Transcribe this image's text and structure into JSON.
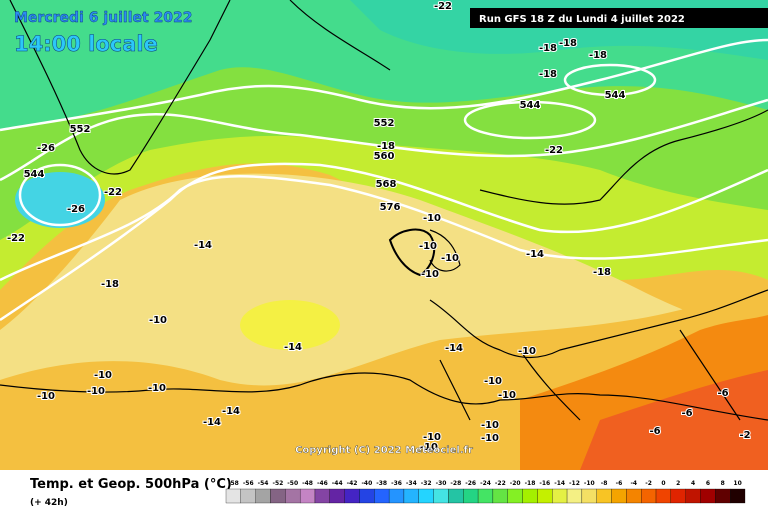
{
  "header": {
    "date": "Mercredi 6 juillet 2022",
    "time": "14:00 locale",
    "run": "Run GFS 18 Z du Lundi 4 juillet 2022"
  },
  "map_labels": [
    "-22",
    "-18",
    "-18",
    "-18",
    "-18",
    "552",
    "544",
    "544",
    "-26",
    "552",
    "-18",
    "560",
    "-22",
    "544",
    "-22",
    "-26",
    "568",
    "576",
    "-10",
    "-22",
    "-14",
    "-10",
    "-10",
    "-10",
    "-14",
    "-18",
    "-18",
    "-10",
    "-14",
    "-14",
    "-10",
    "-10",
    "-10",
    "-10",
    "-10",
    "-10",
    "-10",
    "-6",
    "-14",
    "-6",
    "-14",
    "-10",
    "-6",
    "-10",
    "-10",
    "-2",
    "-10"
  ],
  "copyright": "Copyright (C) 2022 Meteociel.fr",
  "footer": {
    "title": "Temp. et Geop. 500hPa (°C)",
    "lead": "(+ 42h)"
  },
  "color_scale": {
    "labels": [
      "-58",
      "-56",
      "-54",
      "-52",
      "-50",
      "-48",
      "-46",
      "-44",
      "-42",
      "-40",
      "-38",
      "-36",
      "-34",
      "-32",
      "-30",
      "-28",
      "-26",
      "-24",
      "-22",
      "-20",
      "-18",
      "-16",
      "-14",
      "-12",
      "-10",
      "-8",
      "-6",
      "-4",
      "-2",
      "0",
      "2",
      "4",
      "6",
      "8",
      "10"
    ],
    "colors": [
      "#e4e4e4",
      "#c4c4c4",
      "#a4a4a4",
      "#846484",
      "#a474a4",
      "#c484c4",
      "#8444a4",
      "#6424a4",
      "#4424c4",
      "#2444e4",
      "#2464ff",
      "#2494ff",
      "#24b4ff",
      "#24d4ff",
      "#44e4e4",
      "#24c4a4",
      "#24d484",
      "#44e464",
      "#64e444",
      "#84f024",
      "#a4f000",
      "#c4f000",
      "#e4f044",
      "#f4f084",
      "#f4e064",
      "#f8c424",
      "#f4a400",
      "#f48400",
      "#f46400",
      "#f04400",
      "#e02400",
      "#c01400",
      "#a00000",
      "#600000",
      "#200000"
    ]
  }
}
